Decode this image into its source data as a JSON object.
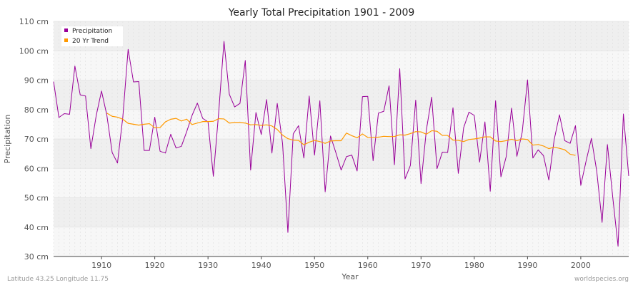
{
  "chart_data": {
    "type": "line",
    "title": "Yearly Total Precipitation 1901 - 2009",
    "xlabel": "Year",
    "ylabel": "Precipitation",
    "xlim": [
      1901,
      2009
    ],
    "ylim": [
      30,
      110
    ],
    "x_ticks": [
      1910,
      1920,
      1930,
      1940,
      1950,
      1960,
      1970,
      1980,
      1990,
      2000
    ],
    "y_ticks": [
      {
        "value": 30,
        "label": "30 cm"
      },
      {
        "value": 40,
        "label": "40 cm"
      },
      {
        "value": 50,
        "label": "50 cm"
      },
      {
        "value": 60,
        "label": "60 cm"
      },
      {
        "value": 70,
        "label": "70 cm"
      },
      {
        "value": 80,
        "label": "80 cm"
      },
      {
        "value": 90,
        "label": "90 cm"
      },
      {
        "value": 100,
        "label": "100 cm"
      },
      {
        "value": 110,
        "label": "110 cm"
      }
    ],
    "legend_position": "top-left",
    "grid": true,
    "series": [
      {
        "name": "Precipitation",
        "color": "#990099",
        "x_start": 1901,
        "values": [
          89.5,
          77.3,
          78.6,
          78.4,
          94.8,
          85.0,
          84.6,
          66.7,
          77.9,
          86.3,
          78.1,
          65.4,
          61.8,
          77.4,
          100.5,
          89.4,
          89.5,
          66.1,
          66.1,
          77.4,
          65.8,
          65.2,
          71.6,
          66.9,
          67.5,
          72.5,
          78.0,
          82.2,
          77.0,
          75.8,
          57.3,
          78.9,
          103.2,
          85.2,
          80.9,
          82.1,
          96.7,
          59.4,
          79.0,
          71.5,
          83.4,
          65.2,
          82.1,
          68.4,
          38.2,
          71.7,
          74.5,
          63.5,
          84.6,
          64.5,
          83.0,
          52.0,
          71.0,
          65.4,
          59.4,
          64.0,
          64.5,
          59.1,
          84.4,
          84.5,
          62.6,
          78.8,
          79.4,
          88.1,
          61.2,
          93.9,
          56.4,
          61.0,
          83.2,
          54.8,
          73.0,
          84.2,
          59.9,
          65.5,
          65.4,
          80.6,
          58.3,
          73.8,
          79.1,
          78.0,
          62.1,
          75.8,
          52.2,
          83.0,
          57.1,
          64.0,
          80.5,
          64.1,
          72.3,
          90.1,
          63.5,
          66.3,
          64.3,
          56.0,
          69.7,
          78.2,
          69.4,
          68.5,
          74.5,
          54.2,
          62.5,
          70.2,
          59.0,
          41.6,
          68.1,
          50.2,
          33.5,
          78.5,
          57.4
        ]
      },
      {
        "name": "20 Yr Trend",
        "color": "#ff9900",
        "x_start": 1911,
        "values": [
          78.8,
          77.7,
          77.4,
          76.7,
          75.3,
          75.0,
          74.7,
          75.0,
          75.2,
          73.8,
          73.9,
          75.8,
          76.7,
          77.0,
          76.1,
          76.7,
          74.9,
          75.4,
          75.9,
          75.9,
          76.0,
          76.9,
          76.8,
          75.4,
          75.6,
          75.6,
          75.4,
          74.8,
          74.9,
          74.6,
          74.8,
          74.4,
          73.2,
          71.3,
          70.1,
          69.6,
          69.5,
          68.0,
          68.9,
          69.5,
          69.1,
          68.5,
          69.3,
          69.4,
          69.4,
          72.0,
          71.1,
          70.4,
          71.7,
          70.5,
          70.5,
          70.6,
          70.9,
          70.8,
          70.8,
          71.4,
          71.3,
          71.8,
          72.5,
          72.4,
          71.6,
          72.8,
          72.6,
          71.2,
          71.2,
          69.6,
          69.5,
          69.1,
          69.8,
          70.0,
          70.3,
          70.7,
          70.7,
          69.3,
          69.1,
          69.4,
          69.9,
          69.4,
          70.0,
          69.8,
          67.9,
          68.1,
          67.6,
          66.7,
          67.2,
          66.8,
          66.3,
          64.8,
          64.4
        ]
      }
    ]
  },
  "footer": {
    "left": "Latitude 43.25 Longitude 11.75",
    "right": "worldspecies.org"
  }
}
